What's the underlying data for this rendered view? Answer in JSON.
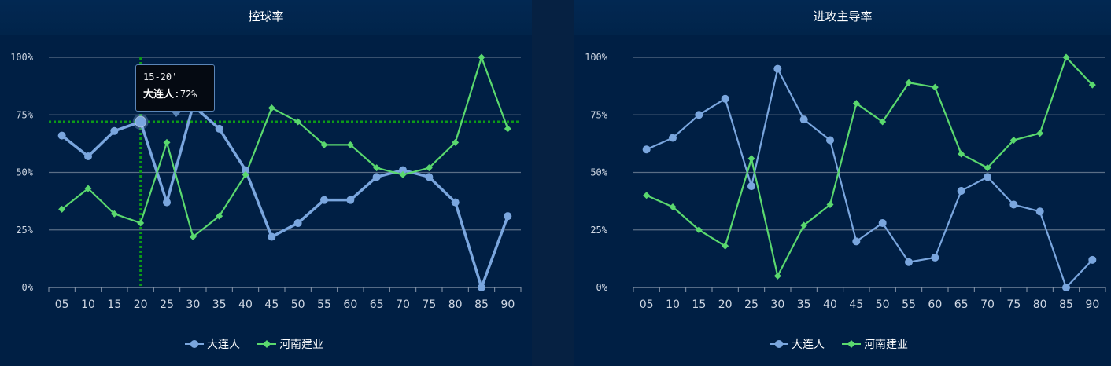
{
  "colors": {
    "dalian": "#7aa6de",
    "henan": "#5ad86e",
    "grid": "#5a6e86",
    "axis_text": "#d0d8e4",
    "crosshair": "#0c9a18"
  },
  "chart_data": [
    {
      "type": "line",
      "title": "控球率",
      "categories": [
        "05",
        "10",
        "15",
        "20",
        "25",
        "30",
        "35",
        "40",
        "45",
        "50",
        "55",
        "60",
        "65",
        "70",
        "75",
        "80",
        "85",
        "90"
      ],
      "ylim": [
        0,
        100
      ],
      "y_ticks": [
        "0%",
        "25%",
        "50%",
        "75%",
        "100%"
      ],
      "grid": true,
      "legend_position": "bottom",
      "series": [
        {
          "name": "大连人",
          "marker": "circle",
          "values": [
            66,
            57,
            68,
            72,
            37,
            79,
            69,
            51,
            22,
            28,
            38,
            38,
            48,
            51,
            48,
            37,
            0,
            31
          ]
        },
        {
          "name": "河南建业",
          "marker": "diamond",
          "values": [
            34,
            43,
            32,
            28,
            63,
            22,
            31,
            49,
            78,
            72,
            62,
            62,
            52,
            49,
            52,
            63,
            100,
            69
          ]
        }
      ],
      "tooltip": {
        "category_index": 3,
        "title": "15-20'",
        "series": "大连人",
        "value_label": "72%"
      }
    },
    {
      "type": "line",
      "title": "进攻主导率",
      "categories": [
        "05",
        "10",
        "15",
        "20",
        "25",
        "30",
        "35",
        "40",
        "45",
        "50",
        "55",
        "60",
        "65",
        "70",
        "75",
        "80",
        "85",
        "90"
      ],
      "ylim": [
        0,
        100
      ],
      "y_ticks": [
        "0%",
        "25%",
        "50%",
        "75%",
        "100%"
      ],
      "grid": true,
      "legend_position": "bottom",
      "series": [
        {
          "name": "大连人",
          "marker": "circle",
          "values": [
            60,
            65,
            75,
            82,
            44,
            95,
            73,
            64,
            20,
            28,
            11,
            13,
            42,
            48,
            36,
            33,
            0,
            12
          ]
        },
        {
          "name": "河南建业",
          "marker": "diamond",
          "values": [
            40,
            35,
            25,
            18,
            56,
            5,
            27,
            36,
            80,
            72,
            89,
            87,
            58,
            52,
            64,
            67,
            100,
            88
          ]
        }
      ]
    }
  ]
}
